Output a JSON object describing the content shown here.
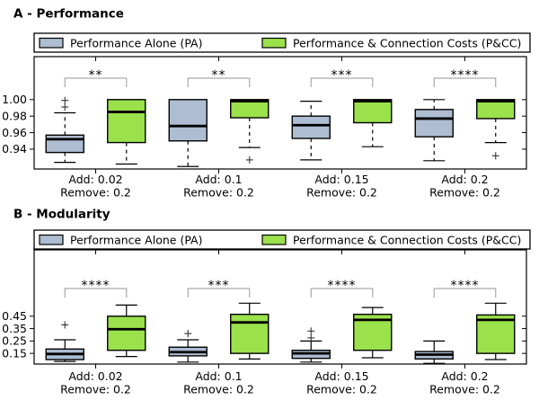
{
  "page": {
    "background": "#ffffff"
  },
  "chart_data": [
    {
      "type": "boxplot",
      "title": "A - Performance",
      "legend_position": "top, spanning plot width",
      "grid": false,
      "ylabel": "",
      "xlabel": "",
      "ylim": [
        0.916,
        1.052
      ],
      "yticks": [
        0.94,
        0.96,
        0.98,
        1.0
      ],
      "groups": [
        {
          "label_line1": "Add: 0.02",
          "label_line2": "Remove: 0.2"
        },
        {
          "label_line1": "Add: 0.1",
          "label_line2": "Remove: 0.2"
        },
        {
          "label_line1": "Add: 0.15",
          "label_line2": "Remove: 0.2"
        },
        {
          "label_line1": "Add: 0.2",
          "label_line2": "Remove: 0.2"
        }
      ],
      "series": [
        {
          "name": "Performance Alone (PA)",
          "color": "#aebdd1",
          "boxes": [
            {
              "whislo": 0.924,
              "q1": 0.936,
              "med": 0.952,
              "q3": 0.957,
              "whishi": 0.984,
              "fliers": [
                0.991,
                0.999
              ]
            },
            {
              "whislo": 0.919,
              "q1": 0.95,
              "med": 0.968,
              "q3": 1.0,
              "whishi": 1.0,
              "fliers": []
            },
            {
              "whislo": 0.927,
              "q1": 0.953,
              "med": 0.969,
              "q3": 0.98,
              "whishi": 0.998,
              "fliers": []
            },
            {
              "whislo": 0.926,
              "q1": 0.955,
              "med": 0.977,
              "q3": 0.988,
              "whishi": 1.0,
              "fliers": []
            }
          ]
        },
        {
          "name": "Performance & Connection Costs (P&CC)",
          "color": "#9be14b",
          "boxes": [
            {
              "whislo": 0.922,
              "q1": 0.948,
              "med": 0.985,
              "q3": 1.0,
              "whishi": 1.0,
              "fliers": []
            },
            {
              "whislo": 0.942,
              "q1": 0.978,
              "med": 0.998,
              "q3": 1.0,
              "whishi": 1.0,
              "fliers": [
                0.927
              ]
            },
            {
              "whislo": 0.943,
              "q1": 0.972,
              "med": 0.998,
              "q3": 1.0,
              "whishi": 1.0,
              "fliers": []
            },
            {
              "whislo": 0.948,
              "q1": 0.977,
              "med": 0.998,
              "q3": 1.0,
              "whishi": 1.0,
              "fliers": [
                0.932
              ]
            }
          ]
        }
      ],
      "significance": [
        "**",
        "**",
        "***",
        "****"
      ]
    },
    {
      "type": "boxplot",
      "title": "B - Modularity",
      "legend_position": "top, spanning plot width",
      "grid": false,
      "ylabel": "",
      "xlabel": "",
      "ylim": [
        0.064,
        0.985
      ],
      "yticks": [
        0.15,
        0.25,
        0.35,
        0.45
      ],
      "groups": [
        {
          "label_line1": "Add: 0.02",
          "label_line2": "Remove: 0.2"
        },
        {
          "label_line1": "Add: 0.1",
          "label_line2": "Remove: 0.2"
        },
        {
          "label_line1": "Add: 0.15",
          "label_line2": "Remove: 0.2"
        },
        {
          "label_line1": "Add: 0.2",
          "label_line2": "Remove: 0.2"
        }
      ],
      "series": [
        {
          "name": "Performance Alone (PA)",
          "color": "#aebdd1",
          "boxes": [
            {
              "whislo": 0.085,
              "q1": 0.1,
              "med": 0.145,
              "q3": 0.185,
              "whishi": 0.26,
              "fliers": [
                0.38
              ]
            },
            {
              "whislo": 0.08,
              "q1": 0.13,
              "med": 0.16,
              "q3": 0.2,
              "whishi": 0.26,
              "fliers": [
                0.31
              ]
            },
            {
              "whislo": 0.08,
              "q1": 0.11,
              "med": 0.15,
              "q3": 0.175,
              "whishi": 0.25,
              "fliers": [
                0.275,
                0.33
              ]
            },
            {
              "whislo": 0.07,
              "q1": 0.105,
              "med": 0.14,
              "q3": 0.165,
              "whishi": 0.25,
              "fliers": []
            }
          ]
        },
        {
          "name": "Performance & Connection Costs (P&CC)",
          "color": "#9be14b",
          "boxes": [
            {
              "whislo": 0.125,
              "q1": 0.175,
              "med": 0.345,
              "q3": 0.45,
              "whishi": 0.54,
              "fliers": []
            },
            {
              "whislo": 0.105,
              "q1": 0.15,
              "med": 0.4,
              "q3": 0.465,
              "whishi": 0.555,
              "fliers": []
            },
            {
              "whislo": 0.115,
              "q1": 0.175,
              "med": 0.42,
              "q3": 0.465,
              "whishi": 0.52,
              "fliers": []
            },
            {
              "whislo": 0.1,
              "q1": 0.15,
              "med": 0.42,
              "q3": 0.46,
              "whishi": 0.555,
              "fliers": []
            }
          ]
        }
      ],
      "significance": [
        "****",
        "***",
        "****",
        "****"
      ]
    }
  ],
  "styles": {
    "box_edge_color": "#000000",
    "median_color": "#000000",
    "bracket_color": "#aaaaaa",
    "pa_fill": "#aebdd1",
    "pcc_fill": "#9be14b"
  }
}
